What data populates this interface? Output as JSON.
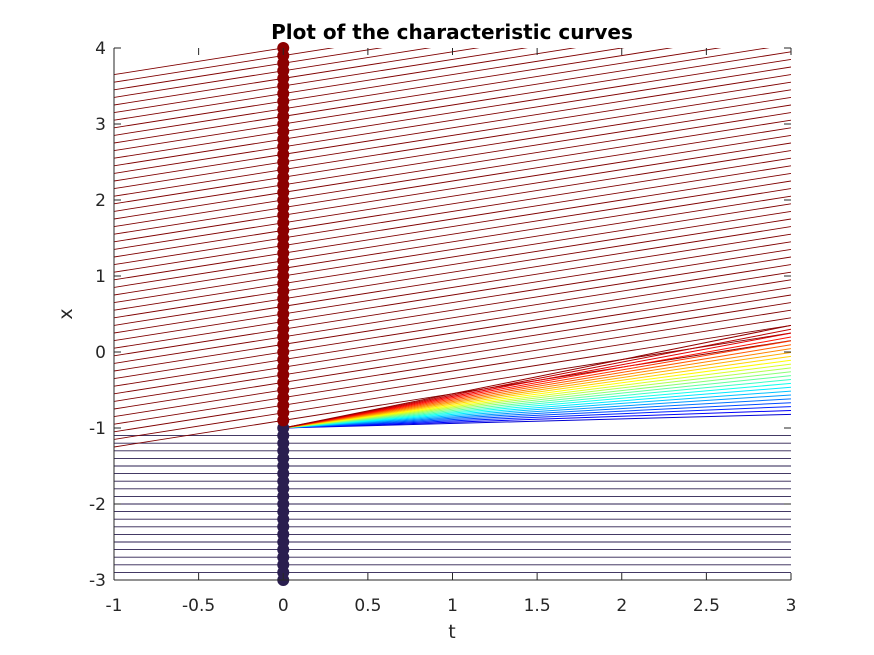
{
  "chart_data": {
    "type": "line",
    "title": "Plot of the characteristic curves",
    "xlabel": "t",
    "ylabel": "x",
    "xlim": [
      -1,
      3
    ],
    "ylim": [
      -3,
      4
    ],
    "xticks": [
      -1,
      -0.5,
      0,
      0.5,
      1,
      1.5,
      2,
      2.5,
      3
    ],
    "xtick_labels": [
      "-1",
      "-0.5",
      "0",
      "0.5",
      "1",
      "1.5",
      "2",
      "2.5",
      "3"
    ],
    "yticks": [
      -3,
      -2,
      -1,
      0,
      1,
      2,
      3,
      4
    ],
    "ytick_labels": [
      "-3",
      "-2",
      "-1",
      "0",
      "1",
      "2",
      "3",
      "4"
    ],
    "grid": false,
    "legend": "none",
    "initial_points": {
      "t": 0,
      "x_start": -3,
      "x_end": 4,
      "step": 0.1
    },
    "characteristics": {
      "x_lt_minus1": {
        "slope": 0,
        "color": "#2a1e4f"
      },
      "x_gt_minus1": {
        "slope": 0.35,
        "color": "#800000"
      },
      "fan": {
        "origin": [
          0,
          -1
        ],
        "slope_min": 0.06,
        "slope_max": 0.45,
        "count": 24
      }
    },
    "colors": {
      "upper_points": "#8b0000",
      "lower_points": "#2a1e4f",
      "axes": "#262626"
    }
  }
}
